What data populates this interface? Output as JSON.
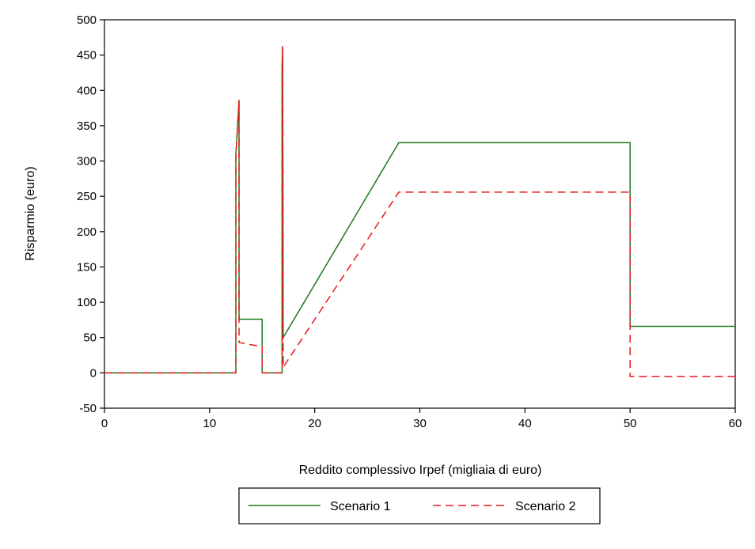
{
  "chart_data": {
    "type": "line",
    "xlabel": "Reddito complessivo Irpef (migliaia di euro)",
    "ylabel": "Risparmio (euro)",
    "xlim": [
      0,
      60
    ],
    "ylim": [
      -50,
      500
    ],
    "x_ticks": [
      0,
      10,
      20,
      30,
      40,
      50,
      60
    ],
    "y_ticks": [
      -50,
      0,
      50,
      100,
      150,
      200,
      250,
      300,
      350,
      400,
      450,
      500
    ],
    "grid": false,
    "legend_position": "bottom",
    "series": [
      {
        "name": "Scenario 1",
        "color": "#1a7a1a",
        "dash": "solid",
        "points": [
          [
            0,
            0
          ],
          [
            12.5,
            0
          ],
          [
            12.5,
            310
          ],
          [
            12.8,
            385
          ],
          [
            12.8,
            76
          ],
          [
            15,
            76
          ],
          [
            15,
            0
          ],
          [
            16.9,
            0
          ],
          [
            16.9,
            435
          ],
          [
            16.95,
            460
          ],
          [
            17,
            50
          ],
          [
            28,
            326
          ],
          [
            50,
            326
          ],
          [
            50,
            66
          ],
          [
            60,
            66
          ]
        ]
      },
      {
        "name": "Scenario 2",
        "color": "#e8191c",
        "dash": "dashed",
        "points": [
          [
            0,
            0
          ],
          [
            12.5,
            0
          ],
          [
            12.5,
            305
          ],
          [
            12.8,
            387
          ],
          [
            12.8,
            43
          ],
          [
            15,
            37
          ],
          [
            15,
            0
          ],
          [
            16.9,
            0
          ],
          [
            16.9,
            430
          ],
          [
            16.95,
            463
          ],
          [
            17,
            8
          ],
          [
            28,
            256
          ],
          [
            50,
            256
          ],
          [
            50,
            -5
          ],
          [
            60,
            -5
          ]
        ]
      }
    ]
  }
}
